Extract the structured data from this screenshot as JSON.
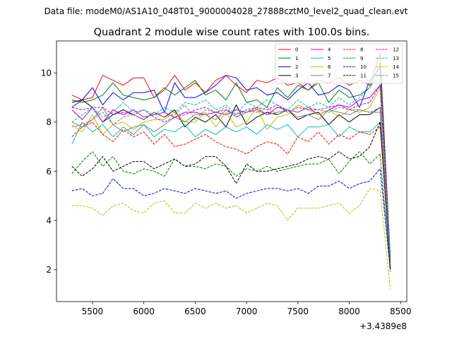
{
  "suptitle": "Data file: modeM0/AS1A10_048T01_9000004028_27888cztM0_level2_quad_clean.evt",
  "chart_data": {
    "type": "line",
    "title": "Quadrant 2 module wise count rates with 100.0s bins.",
    "xlabel": "",
    "ylabel": "",
    "x_offset_label": "+3.4389e8",
    "xlim": [
      5150,
      8560
    ],
    "ylim": [
      0.7,
      11.3
    ],
    "xticks": [
      5500,
      6000,
      6500,
      7000,
      7500,
      8000,
      8500
    ],
    "yticks": [
      2,
      4,
      6,
      8,
      10
    ],
    "grid": false,
    "legend_position": "top-right",
    "x": [
      5300,
      5400,
      5500,
      5600,
      5700,
      5800,
      5900,
      6000,
      6100,
      6200,
      6300,
      6400,
      6500,
      6600,
      6700,
      6800,
      6900,
      7000,
      7100,
      7200,
      7300,
      7400,
      7500,
      7600,
      7700,
      7800,
      7900,
      8000,
      8100,
      8200,
      8300,
      8400
    ],
    "series": [
      {
        "name": "0",
        "color": "#ff0000",
        "dash": "solid",
        "values": [
          9.1,
          8.9,
          9.0,
          9.9,
          9.7,
          9.5,
          9.8,
          9.8,
          9.0,
          9.3,
          9.9,
          9.3,
          9.6,
          9.2,
          9.7,
          9.9,
          9.5,
          9.2,
          9.7,
          9.6,
          9.8,
          9.5,
          9.6,
          9.3,
          9.7,
          9.6,
          9.8,
          9.5,
          9.7,
          9.5,
          10.8,
          2.5
        ]
      },
      {
        "name": "1",
        "color": "#008000",
        "dash": "solid",
        "values": [
          8.9,
          8.8,
          8.9,
          9.1,
          9.6,
          9.1,
          9.0,
          8.9,
          9.0,
          9.4,
          9.1,
          9.4,
          9.7,
          9.1,
          9.3,
          8.9,
          9.6,
          8.8,
          8.9,
          8.6,
          9.4,
          9.0,
          9.5,
          9.3,
          9.6,
          8.8,
          9.3,
          9.0,
          9.1,
          9.4,
          10.4,
          2.4
        ]
      },
      {
        "name": "2",
        "color": "#0000ff",
        "dash": "solid",
        "values": [
          8.6,
          8.9,
          9.4,
          8.7,
          9.2,
          8.9,
          9.2,
          9.2,
          9.3,
          8.4,
          9.6,
          9.0,
          9.0,
          9.2,
          9.5,
          9.9,
          9.8,
          9.3,
          9.4,
          9.1,
          9.2,
          8.9,
          9.3,
          9.6,
          9.1,
          9.2,
          9.5,
          9.3,
          8.6,
          9.7,
          10.2,
          2.3
        ]
      },
      {
        "name": "3",
        "color": "#000000",
        "dash": "solid",
        "values": [
          8.8,
          8.9,
          8.6,
          8.0,
          8.3,
          8.5,
          8.3,
          8.1,
          8.4,
          8.2,
          8.5,
          7.8,
          8.2,
          8.0,
          8.3,
          7.8,
          8.7,
          7.9,
          8.2,
          8.4,
          8.3,
          8.5,
          8.1,
          8.3,
          8.4,
          7.9,
          8.3,
          8.0,
          8.3,
          8.3,
          8.6,
          2.0
        ]
      },
      {
        "name": "4",
        "color": "#bf00bf",
        "dash": "solid",
        "values": [
          8.5,
          8.1,
          8.6,
          8.0,
          8.5,
          8.3,
          8.5,
          8.2,
          8.3,
          8.4,
          8.2,
          8.4,
          8.4,
          8.3,
          8.4,
          8.3,
          8.5,
          8.4,
          8.5,
          8.3,
          8.6,
          8.5,
          8.4,
          8.6,
          8.3,
          8.5,
          8.7,
          8.6,
          8.9,
          9.0,
          9.5,
          2.3
        ]
      },
      {
        "name": "5",
        "color": "#00bfbf",
        "dash": "solid",
        "values": [
          7.1,
          8.0,
          7.6,
          7.9,
          7.4,
          7.8,
          7.5,
          7.9,
          7.4,
          7.7,
          7.6,
          7.9,
          7.4,
          7.7,
          7.5,
          7.8,
          7.6,
          7.8,
          7.5,
          7.9,
          7.7,
          7.9,
          7.4,
          7.8,
          7.8,
          7.9,
          7.4,
          7.8,
          7.6,
          7.6,
          8.0,
          2.0
        ]
      },
      {
        "name": "6",
        "color": "#bfbf00",
        "dash": "solid",
        "values": [
          7.9,
          7.6,
          8.3,
          7.5,
          7.9,
          8.0,
          7.7,
          8.0,
          8.1,
          8.1,
          8.4,
          8.0,
          8.0,
          8.4,
          7.8,
          8.4,
          7.8,
          8.0,
          8.6,
          7.7,
          8.2,
          8.3,
          8.7,
          8.5,
          8.3,
          8.5,
          8.2,
          8.5,
          8.4,
          8.6,
          9.4,
          2.2
        ]
      },
      {
        "name": "7",
        "color": "#808080",
        "dash": "solid",
        "values": [
          8.0,
          7.8,
          8.1,
          8.6,
          7.9,
          7.6,
          7.8,
          7.9,
          7.6,
          7.9,
          8.2,
          8.0,
          8.3,
          8.3,
          8.1,
          8.5,
          8.2,
          8.4,
          8.6,
          8.3,
          8.4,
          8.5,
          8.2,
          8.3,
          8.1,
          8.5,
          8.4,
          8.3,
          8.5,
          8.4,
          8.4,
          2.1
        ]
      },
      {
        "name": "8",
        "color": "#ff0000",
        "dash": "dashed",
        "values": [
          7.4,
          7.8,
          8.0,
          7.5,
          7.2,
          7.7,
          7.4,
          7.6,
          7.1,
          7.5,
          7.0,
          7.1,
          7.3,
          7.5,
          7.2,
          7.0,
          6.9,
          6.7,
          7.0,
          7.2,
          7.1,
          6.7,
          7.4,
          7.2,
          7.6,
          7.1,
          7.5,
          7.3,
          7.6,
          7.5,
          7.8,
          2.6
        ]
      },
      {
        "name": "9",
        "color": "#008000",
        "dash": "dashed",
        "values": [
          5.9,
          6.4,
          6.8,
          6.2,
          6.6,
          6.0,
          5.9,
          6.1,
          6.0,
          5.8,
          6.5,
          6.2,
          6.2,
          6.1,
          6.3,
          6.2,
          5.8,
          6.1,
          6.0,
          6.2,
          6.0,
          6.1,
          6.2,
          6.3,
          6.3,
          6.5,
          5.9,
          6.4,
          6.8,
          6.3,
          6.7,
          1.9
        ]
      },
      {
        "name": "10",
        "color": "#0000ff",
        "dash": "dashed",
        "values": [
          5.2,
          5.3,
          5.0,
          5.1,
          5.7,
          5.3,
          5.3,
          5.0,
          5.1,
          5.3,
          5.2,
          5.1,
          5.3,
          5.2,
          5.1,
          5.2,
          4.9,
          5.1,
          5.2,
          5.3,
          5.3,
          5.2,
          5.3,
          5.1,
          5.4,
          5.4,
          5.6,
          5.3,
          5.5,
          5.6,
          6.1,
          2.0
        ]
      },
      {
        "name": "11",
        "color": "#000000",
        "dash": "dashed",
        "values": [
          6.2,
          5.8,
          6.1,
          6.6,
          6.0,
          6.2,
          6.4,
          6.4,
          6.1,
          6.3,
          6.5,
          6.2,
          6.3,
          6.6,
          6.6,
          6.2,
          5.5,
          6.3,
          6.0,
          6.0,
          6.1,
          6.2,
          6.3,
          6.5,
          6.6,
          6.5,
          6.8,
          6.5,
          6.6,
          7.0,
          8.0,
          2.0
        ]
      },
      {
        "name": "12",
        "color": "#bf00bf",
        "dash": "dashed",
        "values": [
          8.6,
          8.5,
          8.6,
          8.6,
          8.3,
          8.4,
          8.3,
          8.5,
          8.2,
          8.0,
          8.2,
          8.3,
          8.5,
          8.6,
          8.4,
          8.5,
          8.3,
          8.5,
          8.6,
          8.5,
          8.7,
          8.4,
          8.6,
          8.5,
          8.5,
          8.6,
          8.7,
          8.5,
          8.7,
          8.8,
          9.5,
          2.3
        ]
      },
      {
        "name": "13",
        "color": "#00bfbf",
        "dash": "dashed",
        "values": [
          8.0,
          8.3,
          8.6,
          8.2,
          8.4,
          8.8,
          8.4,
          8.5,
          8.3,
          8.6,
          8.4,
          8.8,
          8.7,
          8.9,
          8.5,
          8.7,
          8.3,
          8.8,
          8.6,
          8.9,
          8.7,
          8.5,
          8.9,
          8.6,
          8.8,
          8.6,
          9.0,
          8.7,
          9.0,
          9.4,
          10.0,
          2.5
        ]
      },
      {
        "name": "14",
        "color": "#bfbf00",
        "dash": "dashed",
        "values": [
          4.6,
          4.6,
          4.5,
          4.2,
          4.6,
          4.7,
          4.4,
          4.3,
          4.7,
          4.8,
          4.3,
          4.3,
          4.7,
          4.5,
          4.7,
          4.5,
          4.6,
          4.3,
          4.5,
          4.7,
          4.6,
          4.0,
          4.5,
          4.5,
          4.5,
          4.6,
          4.7,
          4.3,
          4.6,
          5.3,
          5.2,
          1.2
        ]
      },
      {
        "name": "15",
        "color": "#808080",
        "dash": "dashed",
        "values": [
          7.8,
          7.9,
          8.1,
          8.4,
          7.9,
          8.2,
          8.3,
          8.1,
          8.4,
          8.2,
          8.3,
          8.7,
          8.1,
          8.5,
          8.4,
          8.6,
          8.2,
          8.5,
          8.4,
          8.6,
          8.3,
          8.5,
          8.4,
          8.6,
          8.5,
          8.4,
          8.6,
          8.5,
          8.5,
          8.4,
          8.6,
          2.2
        ]
      }
    ]
  }
}
